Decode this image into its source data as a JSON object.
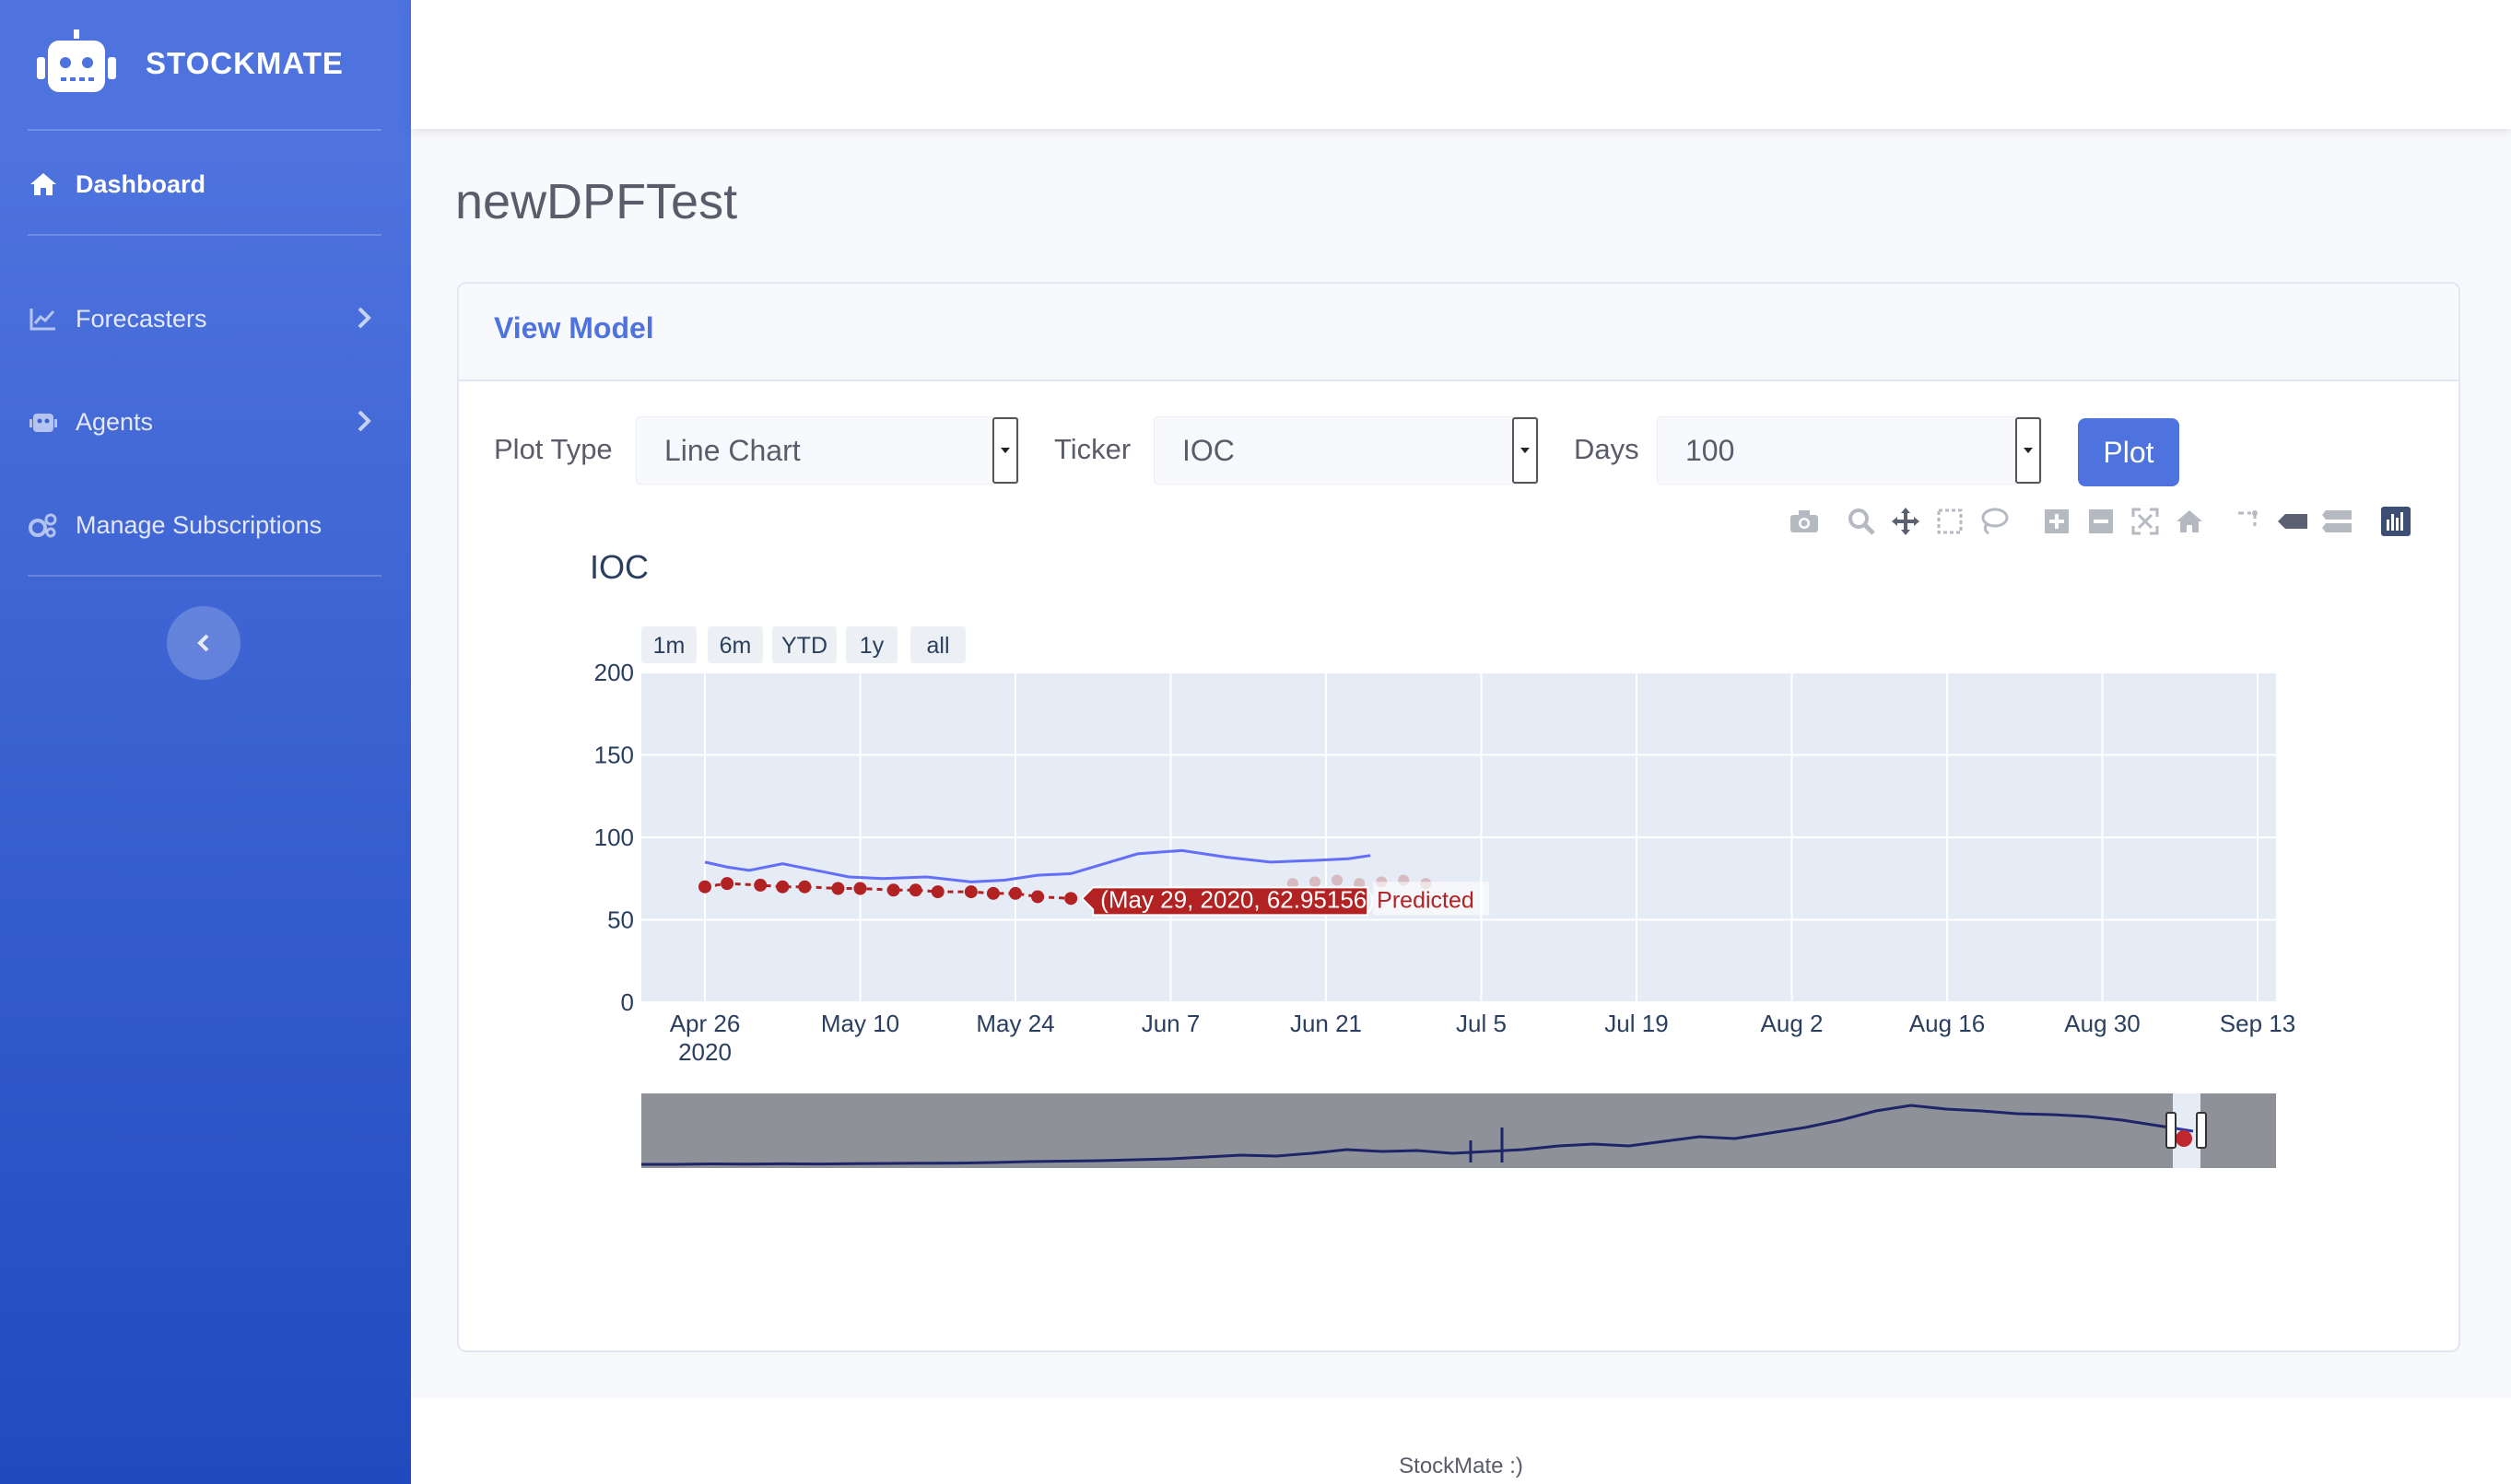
{
  "brand": {
    "name": "STOCKMATE"
  },
  "sidebar": {
    "items": [
      {
        "label": "Dashboard",
        "icon": "home-icon"
      },
      {
        "label": "Forecasters",
        "icon": "chart-line-icon"
      },
      {
        "label": "Agents",
        "icon": "robot-icon"
      },
      {
        "label": "Manage Subscriptions",
        "icon": "cogs-icon"
      }
    ]
  },
  "page": {
    "title": "newDPFTest"
  },
  "card": {
    "title": "View Model"
  },
  "controls": {
    "plot_type_label": "Plot Type",
    "plot_type_value": "Line Chart",
    "ticker_label": "Ticker",
    "ticker_value": "IOC",
    "days_label": "Days",
    "days_value": "100",
    "plot_button": "Plot"
  },
  "modebar": [
    "camera-icon",
    "zoom-icon",
    "pan-icon",
    "box-select-icon",
    "lasso-select-icon",
    "zoom-in-icon",
    "zoom-out-icon",
    "autoscale-icon",
    "reset-axes-icon",
    "spike-lines-icon",
    "hover-closest-icon",
    "hover-compare-icon",
    "plotly-logo-icon"
  ],
  "chart_data": {
    "type": "line",
    "title": "IOC",
    "range_buttons": [
      "1m",
      "6m",
      "YTD",
      "1y",
      "all"
    ],
    "ylim": [
      0,
      200
    ],
    "y_ticks": [
      200,
      150,
      100,
      50,
      0
    ],
    "x_ticks": [
      "Apr 26",
      "May 10",
      "May 24",
      "Jun 7",
      "Jun 21",
      "Jul 5",
      "Jul 19",
      "Aug 2",
      "Aug 16",
      "Aug 30",
      "Sep 13"
    ],
    "x_tick_year": "2020",
    "series": [
      {
        "color": "#636efa",
        "x": [
          "2020-04-26",
          "2020-04-28",
          "2020-04-30",
          "2020-05-03",
          "2020-05-06",
          "2020-05-09",
          "2020-05-12",
          "2020-05-16",
          "2020-05-20",
          "2020-05-23",
          "2020-05-26",
          "2020-05-29",
          "2020-06-01",
          "2020-06-04",
          "2020-06-08",
          "2020-06-12",
          "2020-06-16",
          "2020-06-20",
          "2020-06-23",
          "2020-06-25"
        ],
        "values": [
          85,
          82,
          80,
          84,
          80,
          76,
          75,
          76,
          73,
          74,
          77,
          78,
          84,
          90,
          92,
          88,
          85,
          86,
          87,
          89
        ]
      },
      {
        "name": "Predicted",
        "color": "#b22222",
        "x": [
          "2020-04-26",
          "2020-04-28",
          "2020-05-01",
          "2020-05-03",
          "2020-05-05",
          "2020-05-08",
          "2020-05-10",
          "2020-05-13",
          "2020-05-15",
          "2020-05-17",
          "2020-05-20",
          "2020-05-22",
          "2020-05-24",
          "2020-05-26",
          "2020-05-29"
        ],
        "values": [
          70,
          72,
          71,
          70,
          70,
          69,
          69,
          68,
          68,
          67,
          67,
          66,
          66,
          64,
          62.95
        ]
      }
    ],
    "hover_label": "(May 29, 2020, 62.95156)",
    "hover_series": "Predicted",
    "rangeslider": true
  },
  "footer": {
    "text": "StockMate :)"
  }
}
